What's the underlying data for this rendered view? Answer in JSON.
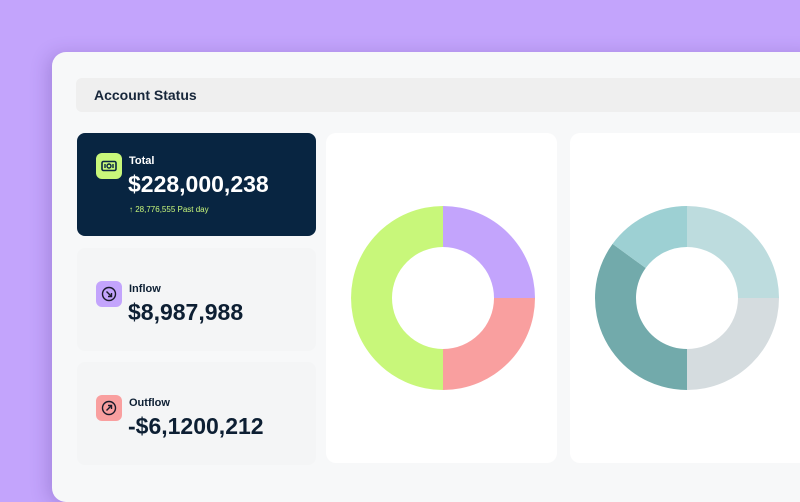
{
  "header": {
    "title": "Account Status"
  },
  "cards": {
    "total": {
      "label": "Total",
      "amount": "$228,000,238",
      "change": "↑ 28,776,555 Past day",
      "icon": "money-icon"
    },
    "inflow": {
      "label": "Inflow",
      "amount": "$8,987,988",
      "icon": "arrow-down-right-icon"
    },
    "outflow": {
      "label": "Outflow",
      "amount": "-$6,1200,212",
      "icon": "arrow-up-right-icon"
    }
  },
  "colors": {
    "background": "#c3a4fc",
    "navy": "#082541",
    "lime": "#c8f77a",
    "purple": "#c3a4fc",
    "salmon": "#f99f9f",
    "teal_light": "#bddcde",
    "teal_mid": "#9dd0d3",
    "teal_dark": "#72aaab",
    "gray": "#d5dcdf"
  },
  "donut_charts": [
    {
      "type": "donut",
      "slices": [
        {
          "value": 25,
          "color": "#c3a4fc"
        },
        {
          "value": 25,
          "color": "#f99f9f"
        },
        {
          "value": 50,
          "color": "#c8f77a"
        }
      ]
    },
    {
      "type": "donut",
      "slices": [
        {
          "value": 25,
          "color": "#bddcde"
        },
        {
          "value": 25,
          "color": "#d5dcdf"
        },
        {
          "value": 35,
          "color": "#72aaab"
        },
        {
          "value": 15,
          "color": "#9dd0d3"
        }
      ]
    }
  ]
}
